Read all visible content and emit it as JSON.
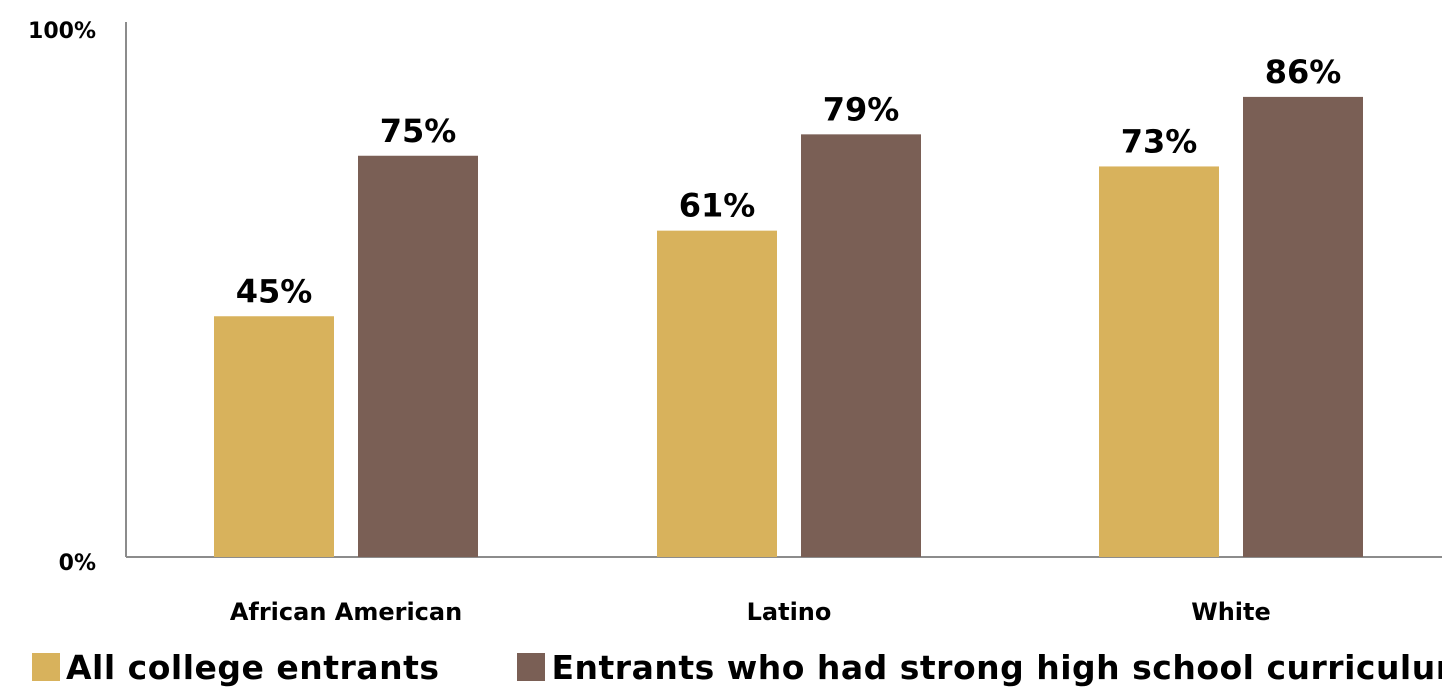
{
  "chart_data": {
    "type": "bar",
    "categories": [
      "African American",
      "Latino",
      "White"
    ],
    "series": [
      {
        "name": "All college entrants",
        "values": [
          45,
          61,
          73
        ],
        "color": "#D8B25C"
      },
      {
        "name": "Entrants who had strong high school curriculum",
        "values": [
          75,
          79,
          86
        ],
        "color": "#7A5F55"
      }
    ],
    "data_labels": [
      [
        "45%",
        "61%",
        "73%"
      ],
      [
        "75%",
        "79%",
        "86%"
      ]
    ],
    "ylim": [
      0,
      100
    ],
    "y_tick_labels": [
      "100%",
      "0%"
    ],
    "grid": false,
    "legend_position": "bottom-left"
  }
}
